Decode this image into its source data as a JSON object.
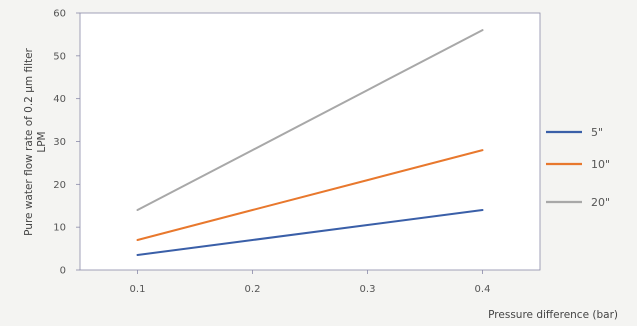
{
  "chart_data": {
    "type": "line",
    "title": "",
    "xlabel": "Pressure difference  (bar)",
    "ylabel_line1": "Pure water flow rate of 0.2 μm filter",
    "ylabel_line2": "LPM",
    "x": [
      0.1,
      0.2,
      0.3,
      0.4
    ],
    "x_tick_labels": [
      "0.1",
      "0.2",
      "0.3",
      "0.4"
    ],
    "xlim": [
      0.05,
      0.45
    ],
    "ylim": [
      0,
      60
    ],
    "y_ticks": [
      0,
      10,
      20,
      30,
      40,
      50,
      60
    ],
    "y_tick_labels": [
      "0",
      "10",
      "20",
      "30",
      "40",
      "50",
      "60"
    ],
    "grid": false,
    "legend_position": "right",
    "series": [
      {
        "name": "5\"",
        "color": "#3a5fa8",
        "values": [
          3.5,
          7,
          10.5,
          14
        ]
      },
      {
        "name": "10\"",
        "color": "#e8782d",
        "values": [
          7,
          14,
          21,
          28
        ]
      },
      {
        "name": "20\"",
        "color": "#a8a8a8",
        "values": [
          14,
          28,
          42,
          56
        ]
      }
    ]
  }
}
